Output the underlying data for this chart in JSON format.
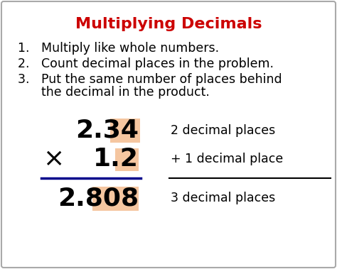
{
  "title": "Multiplying Decimals",
  "title_color": "#cc0000",
  "title_fontsize": 16,
  "bg_color": "#ffffff",
  "border_color": "#aaaaaa",
  "step1": "1.   Multiply like whole numbers.",
  "step2": "2.   Count decimal places in the problem.",
  "step3a": "3.   Put the same number of places behind",
  "step3b": "      the decimal in the product.",
  "step_fontsize": 12.5,
  "num1": "2.34",
  "num2": "1.2",
  "result": "2.808",
  "highlight_color": "#f5c6a0",
  "line_color": "#00008b",
  "label1": "2 decimal places",
  "label2": "+ 1 decimal place",
  "label3": "3 decimal places",
  "math_fontsize": 26,
  "label_fontsize": 12.5,
  "times_symbol": "×"
}
